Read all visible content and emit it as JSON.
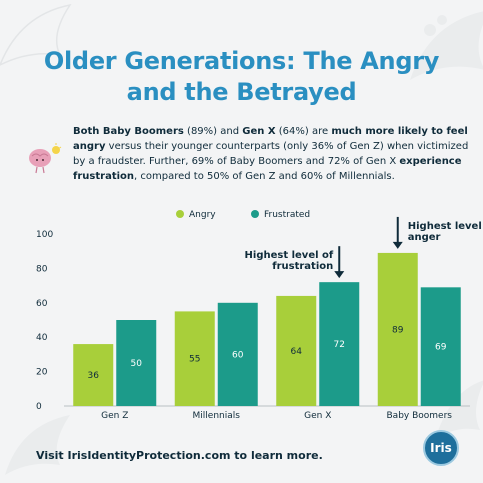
{
  "title_line1": "Older Generations: The Angry",
  "title_line2": "and the Betrayed",
  "intro": {
    "p1": "Both Baby Boomers",
    "p2": " (89%) and ",
    "p3": "Gen X",
    "p4": " (64%) are ",
    "p5": "much more likely to feel angry",
    "p6": " versus their younger counterparts (only 36% of Gen Z) when victimized by a fraudster. Further, 69% of Baby Boomers and 72% of Gen X ",
    "p7": "experience frustration",
    "p8": ", compared to 50% of Gen Z and 60% of Millennials."
  },
  "footer_text": "Visit IrisIdentityProtection.com to learn more.",
  "logo_text": "Iris",
  "colors": {
    "angry": "#a8cf3a",
    "frustrated": "#1c9b8a",
    "title": "#2a8fc1",
    "text": "#0f2b3a"
  },
  "chart_data": {
    "type": "bar",
    "categories": [
      "Gen Z",
      "Millennials",
      "Gen X",
      "Baby Boomers"
    ],
    "series": [
      {
        "name": "Angry",
        "values": [
          36,
          55,
          64,
          89
        ]
      },
      {
        "name": "Frustrated",
        "values": [
          50,
          60,
          72,
          69
        ]
      }
    ],
    "ylim": [
      0,
      100
    ],
    "yticks": [
      0,
      20,
      40,
      60,
      80,
      100
    ],
    "legend": "top-center",
    "grid": false,
    "annotations": [
      {
        "text": "Highest level of frustration",
        "category": "Gen X",
        "series": "Frustrated"
      },
      {
        "text": "Highest level of anger",
        "category": "Baby Boomers",
        "series": "Angry"
      }
    ]
  }
}
